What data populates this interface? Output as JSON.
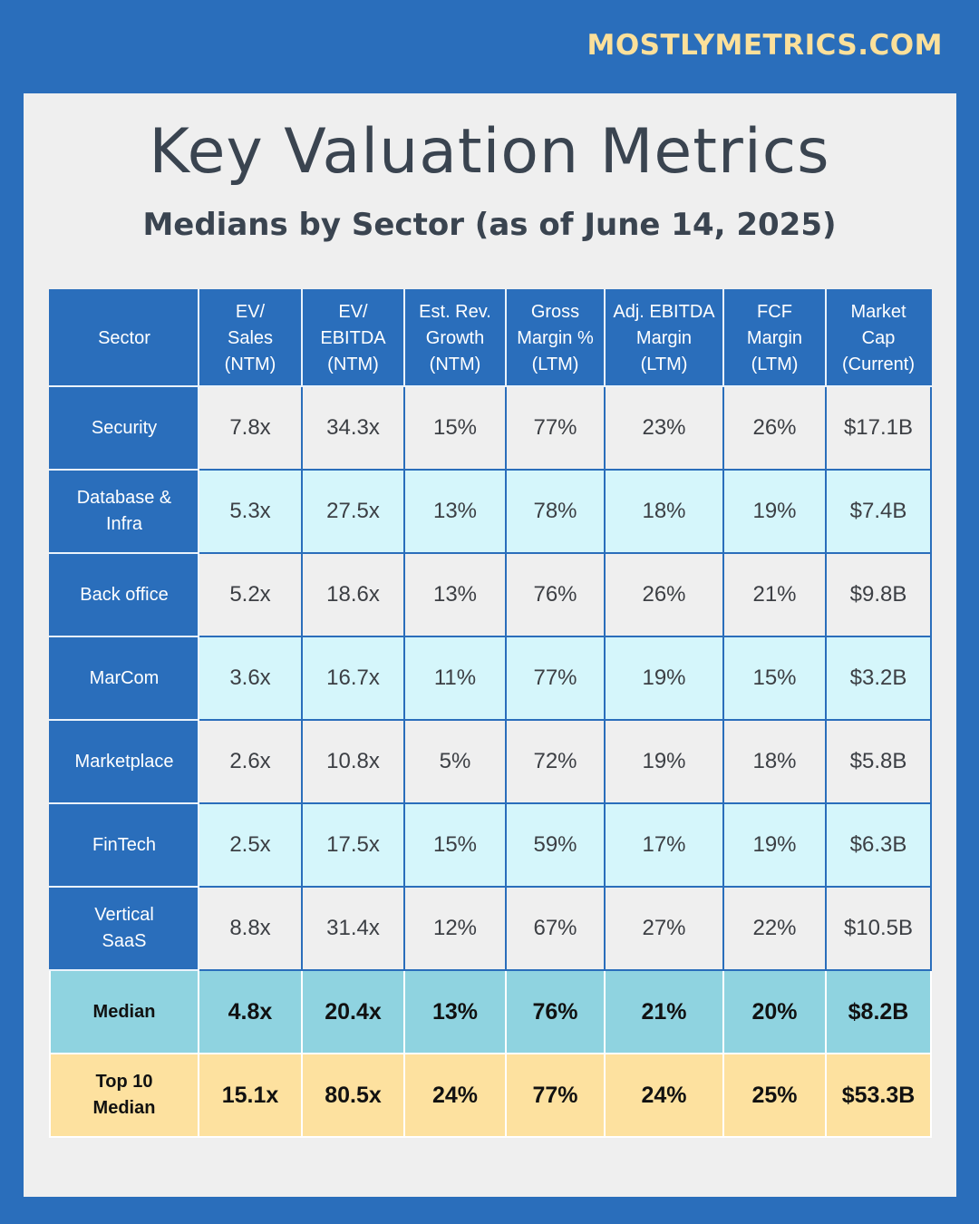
{
  "brand": "MOSTLYMETRICS.COM",
  "title": "Key Valuation Metrics",
  "subtitle": "Medians by Sector (as of  June 14, 2025)",
  "colors": {
    "background": "#2a6ebb",
    "panel": "#efefef",
    "header": "#2a6ebb",
    "row_light": "#efefef",
    "row_cyan": "#d5f6fb",
    "median_row": "#8fd3e0",
    "top10_row": "#fde19f",
    "brand_text": "#fbe09a"
  },
  "chart_data": {
    "type": "table",
    "columns": [
      [
        "Sector"
      ],
      [
        "EV/",
        "Sales",
        "(NTM)"
      ],
      [
        "EV/",
        "EBITDA",
        "(NTM)"
      ],
      [
        "Est. Rev.",
        "Growth",
        "(NTM)"
      ],
      [
        "Gross",
        "Margin %",
        "(LTM)"
      ],
      [
        "Adj. EBITDA",
        "Margin",
        "(LTM)"
      ],
      [
        "FCF",
        "Margin",
        "(LTM)"
      ],
      [
        "Market",
        "Cap",
        "(Current)"
      ]
    ],
    "rows": [
      {
        "sector": [
          "Security"
        ],
        "values": [
          "7.8x",
          "34.3x",
          "15%",
          "77%",
          "23%",
          "26%",
          "$17.1B"
        ]
      },
      {
        "sector": [
          "Database &",
          "Infra"
        ],
        "values": [
          "5.3x",
          "27.5x",
          "13%",
          "78%",
          "18%",
          "19%",
          "$7.4B"
        ]
      },
      {
        "sector": [
          "Back office"
        ],
        "values": [
          "5.2x",
          "18.6x",
          "13%",
          "76%",
          "26%",
          "21%",
          "$9.8B"
        ]
      },
      {
        "sector": [
          "MarCom"
        ],
        "values": [
          "3.6x",
          "16.7x",
          "11%",
          "77%",
          "19%",
          "15%",
          "$3.2B"
        ]
      },
      {
        "sector": [
          "Marketplace"
        ],
        "values": [
          "2.6x",
          "10.8x",
          "5%",
          "72%",
          "19%",
          "18%",
          "$5.8B"
        ]
      },
      {
        "sector": [
          "FinTech"
        ],
        "values": [
          "2.5x",
          "17.5x",
          "15%",
          "59%",
          "17%",
          "19%",
          "$6.3B"
        ]
      },
      {
        "sector": [
          "Vertical",
          "SaaS"
        ],
        "values": [
          "8.8x",
          "31.4x",
          "12%",
          "67%",
          "27%",
          "22%",
          "$10.5B"
        ]
      }
    ],
    "median": {
      "label": [
        "Median"
      ],
      "values": [
        "4.8x",
        "20.4x",
        "13%",
        "76%",
        "21%",
        "20%",
        "$8.2B"
      ]
    },
    "top10_median": {
      "label": [
        "Top 10",
        "Median"
      ],
      "values": [
        "15.1x",
        "80.5x",
        "24%",
        "77%",
        "24%",
        "25%",
        "$53.3B"
      ]
    }
  }
}
